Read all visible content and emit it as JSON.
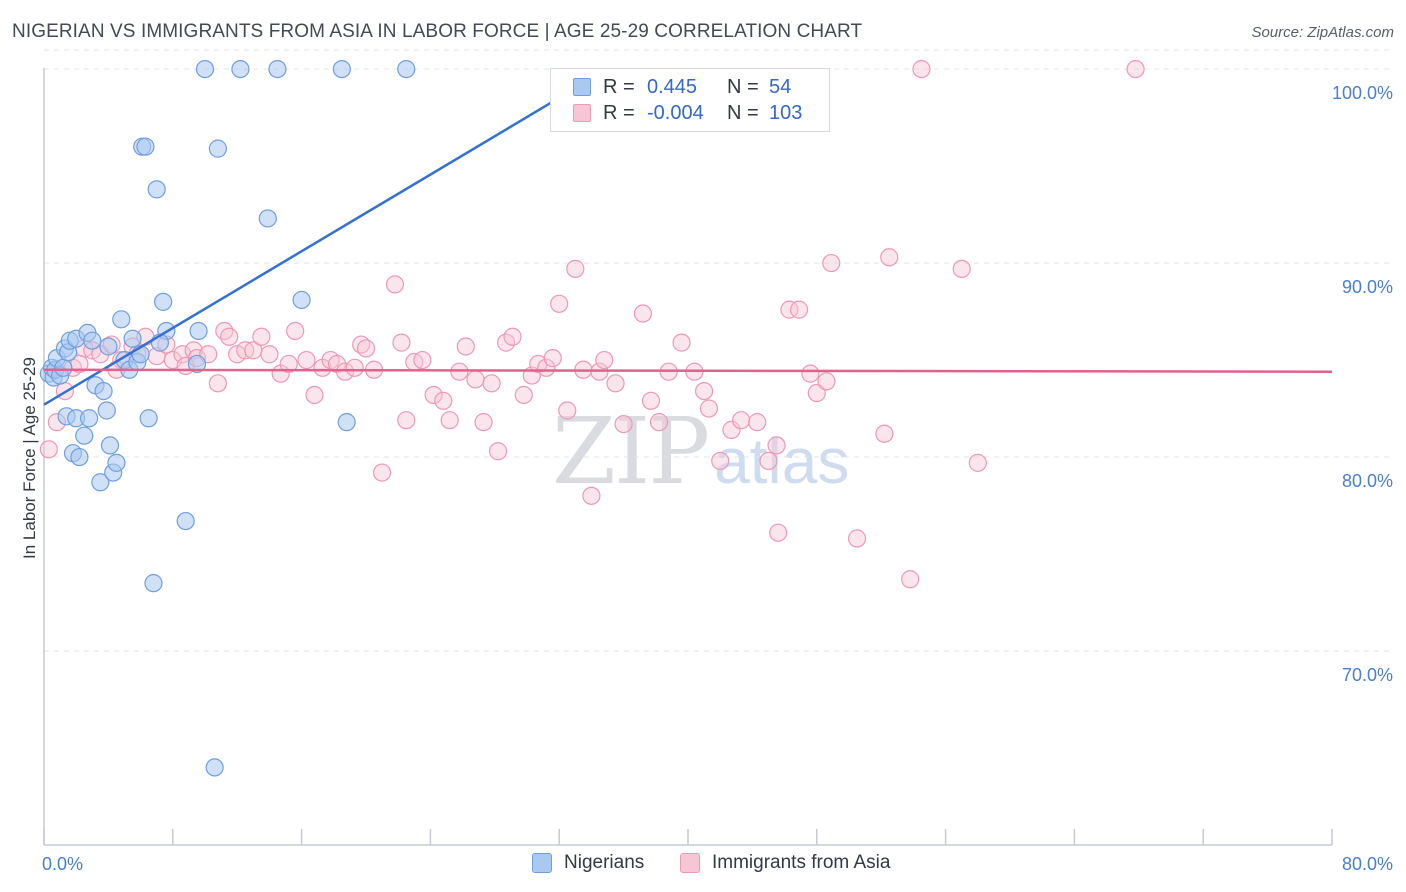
{
  "title": "NIGERIAN VS IMMIGRANTS FROM ASIA IN LABOR FORCE | AGE 25-29 CORRELATION CHART",
  "source": "Source: ZipAtlas.com",
  "watermark": {
    "zip": "ZIP",
    "atlas": "atlas"
  },
  "colors": {
    "nigerians_fill": "#a9c9f0",
    "nigerians_stroke": "#6f9fe0",
    "nigerians_line": "#3572d0",
    "asia_fill": "#f6c6d5",
    "asia_stroke": "#ee98b4",
    "asia_line": "#e0628e",
    "grid": "#dfe3ea",
    "tick_text": "#4a7fcf"
  },
  "legend": {
    "rows": [
      {
        "r_label": "R =",
        "r_value": "0.445",
        "n_label": "N =",
        "n_value": "54"
      },
      {
        "r_label": "R =",
        "r_value": "-0.004",
        "n_label": "N =",
        "n_value": "103"
      }
    ]
  },
  "bottom_legend": [
    "Nigerians",
    "Immigrants from Asia"
  ],
  "chart_data": {
    "type": "scatter",
    "title": "NIGERIAN VS IMMIGRANTS FROM ASIA IN LABOR FORCE | AGE 25-29 CORRELATION CHART",
    "xlabel": "",
    "ylabel": "In Labor Force | Age 25-29",
    "xlim": [
      0,
      80
    ],
    "ylim": [
      60,
      101.5
    ],
    "x_tick_labels": [
      "0.0%",
      "80.0%"
    ],
    "y_ticks": [
      70,
      80,
      90,
      100
    ],
    "y_tick_labels": [
      "70.0%",
      "80.0%",
      "90.0%",
      "100.0%"
    ],
    "series": [
      {
        "name": "Nigerians",
        "R": 0.445,
        "N": 54,
        "trend": {
          "x": [
            0,
            35
          ],
          "y": [
            82.7,
            100
          ]
        },
        "points": [
          [
            0.3,
            84.3
          ],
          [
            0.5,
            84.6
          ],
          [
            0.6,
            84.1
          ],
          [
            0.7,
            84.5
          ],
          [
            0.8,
            85.1
          ],
          [
            1.0,
            84.2
          ],
          [
            1.2,
            84.6
          ],
          [
            1.3,
            85.6
          ],
          [
            1.4,
            82.1
          ],
          [
            1.5,
            85.4
          ],
          [
            1.6,
            86.0
          ],
          [
            1.8,
            80.2
          ],
          [
            2.0,
            82.0
          ],
          [
            2.0,
            86.1
          ],
          [
            2.2,
            80.0
          ],
          [
            2.5,
            81.1
          ],
          [
            2.7,
            86.4
          ],
          [
            2.8,
            82.0
          ],
          [
            3.0,
            86.0
          ],
          [
            3.2,
            83.7
          ],
          [
            3.5,
            78.7
          ],
          [
            3.7,
            83.4
          ],
          [
            3.9,
            82.4
          ],
          [
            4.1,
            80.6
          ],
          [
            4.3,
            79.2
          ],
          [
            4.5,
            79.7
          ],
          [
            4.8,
            87.1
          ],
          [
            5.0,
            85.0
          ],
          [
            5.3,
            84.5
          ],
          [
            5.5,
            86.1
          ],
          [
            5.8,
            84.9
          ],
          [
            6.0,
            85.3
          ],
          [
            6.1,
            96.0
          ],
          [
            6.3,
            96.0
          ],
          [
            6.5,
            82.0
          ],
          [
            6.8,
            73.5
          ],
          [
            7.0,
            93.8
          ],
          [
            7.4,
            88.0
          ],
          [
            7.6,
            86.5
          ],
          [
            8.8,
            76.7
          ],
          [
            9.6,
            86.5
          ],
          [
            9.5,
            84.8
          ],
          [
            10.0,
            100.0
          ],
          [
            10.6,
            64.0
          ],
          [
            10.8,
            95.9
          ],
          [
            12.2,
            100.0
          ],
          [
            13.9,
            92.3
          ],
          [
            14.5,
            100.0
          ],
          [
            16.0,
            88.1
          ],
          [
            18.5,
            100.0
          ],
          [
            18.8,
            81.8
          ],
          [
            22.5,
            100.0
          ],
          [
            7.2,
            85.9
          ],
          [
            4.0,
            85.7
          ]
        ]
      },
      {
        "name": "Immigrants from Asia",
        "R": -0.004,
        "N": 103,
        "trend": {
          "x": [
            0,
            80
          ],
          "y": [
            84.5,
            84.4
          ]
        },
        "points": [
          [
            0.3,
            80.4
          ],
          [
            0.8,
            81.8
          ],
          [
            1.3,
            83.4
          ],
          [
            1.8,
            84.6
          ],
          [
            2.5,
            85.6
          ],
          [
            3.0,
            85.5
          ],
          [
            3.5,
            85.3
          ],
          [
            4.2,
            85.8
          ],
          [
            4.8,
            85.0
          ],
          [
            5.5,
            85.7
          ],
          [
            6.3,
            86.2
          ],
          [
            7.0,
            85.2
          ],
          [
            7.6,
            85.8
          ],
          [
            8.0,
            85.0
          ],
          [
            8.6,
            85.3
          ],
          [
            8.8,
            84.7
          ],
          [
            9.3,
            85.5
          ],
          [
            9.5,
            85.1
          ],
          [
            10.2,
            85.3
          ],
          [
            10.8,
            83.8
          ],
          [
            11.2,
            86.5
          ],
          [
            11.5,
            86.2
          ],
          [
            12.0,
            85.3
          ],
          [
            12.5,
            85.5
          ],
          [
            13.0,
            85.5
          ],
          [
            13.5,
            86.2
          ],
          [
            14.0,
            85.3
          ],
          [
            14.7,
            84.3
          ],
          [
            15.2,
            84.8
          ],
          [
            15.6,
            86.5
          ],
          [
            16.3,
            85.0
          ],
          [
            16.8,
            83.2
          ],
          [
            17.3,
            84.6
          ],
          [
            17.8,
            85.0
          ],
          [
            18.2,
            84.8
          ],
          [
            18.7,
            84.4
          ],
          [
            19.3,
            84.6
          ],
          [
            19.7,
            85.8
          ],
          [
            20.0,
            85.6
          ],
          [
            20.5,
            84.5
          ],
          [
            21.0,
            79.2
          ],
          [
            21.8,
            88.9
          ],
          [
            22.2,
            85.9
          ],
          [
            22.5,
            81.9
          ],
          [
            23.0,
            84.9
          ],
          [
            23.5,
            85.0
          ],
          [
            24.2,
            83.2
          ],
          [
            24.8,
            82.9
          ],
          [
            25.2,
            81.9
          ],
          [
            25.8,
            84.4
          ],
          [
            26.2,
            85.7
          ],
          [
            26.8,
            84.0
          ],
          [
            27.3,
            81.8
          ],
          [
            27.8,
            83.8
          ],
          [
            28.2,
            80.3
          ],
          [
            28.7,
            85.9
          ],
          [
            29.1,
            86.2
          ],
          [
            29.8,
            83.2
          ],
          [
            30.3,
            84.2
          ],
          [
            30.7,
            84.8
          ],
          [
            31.2,
            84.6
          ],
          [
            31.6,
            85.1
          ],
          [
            32.0,
            87.9
          ],
          [
            32.5,
            82.4
          ],
          [
            33.0,
            89.7
          ],
          [
            33.5,
            84.5
          ],
          [
            34.0,
            78.0
          ],
          [
            34.5,
            84.4
          ],
          [
            34.8,
            85.0
          ],
          [
            35.5,
            83.8
          ],
          [
            36.0,
            81.7
          ],
          [
            37.2,
            87.4
          ],
          [
            37.7,
            82.9
          ],
          [
            38.2,
            81.8
          ],
          [
            38.8,
            84.4
          ],
          [
            39.6,
            85.9
          ],
          [
            40.4,
            84.4
          ],
          [
            41.0,
            83.4
          ],
          [
            41.3,
            82.5
          ],
          [
            42.0,
            79.8
          ],
          [
            42.7,
            81.4
          ],
          [
            43.3,
            81.9
          ],
          [
            44.3,
            81.8
          ],
          [
            45.0,
            79.8
          ],
          [
            45.5,
            80.6
          ],
          [
            45.6,
            76.1
          ],
          [
            46.3,
            87.6
          ],
          [
            46.9,
            87.6
          ],
          [
            47.6,
            84.3
          ],
          [
            48.0,
            83.3
          ],
          [
            48.6,
            83.9
          ],
          [
            48.9,
            90.0
          ],
          [
            50.5,
            75.8
          ],
          [
            52.2,
            81.2
          ],
          [
            52.5,
            90.3
          ],
          [
            53.8,
            73.7
          ],
          [
            54.5,
            100.0
          ],
          [
            57.0,
            89.7
          ],
          [
            58.0,
            79.7
          ],
          [
            67.8,
            100.0
          ],
          [
            4.5,
            84.5
          ],
          [
            5.8,
            85.3
          ],
          [
            2.2,
            84.8
          ]
        ]
      }
    ]
  }
}
